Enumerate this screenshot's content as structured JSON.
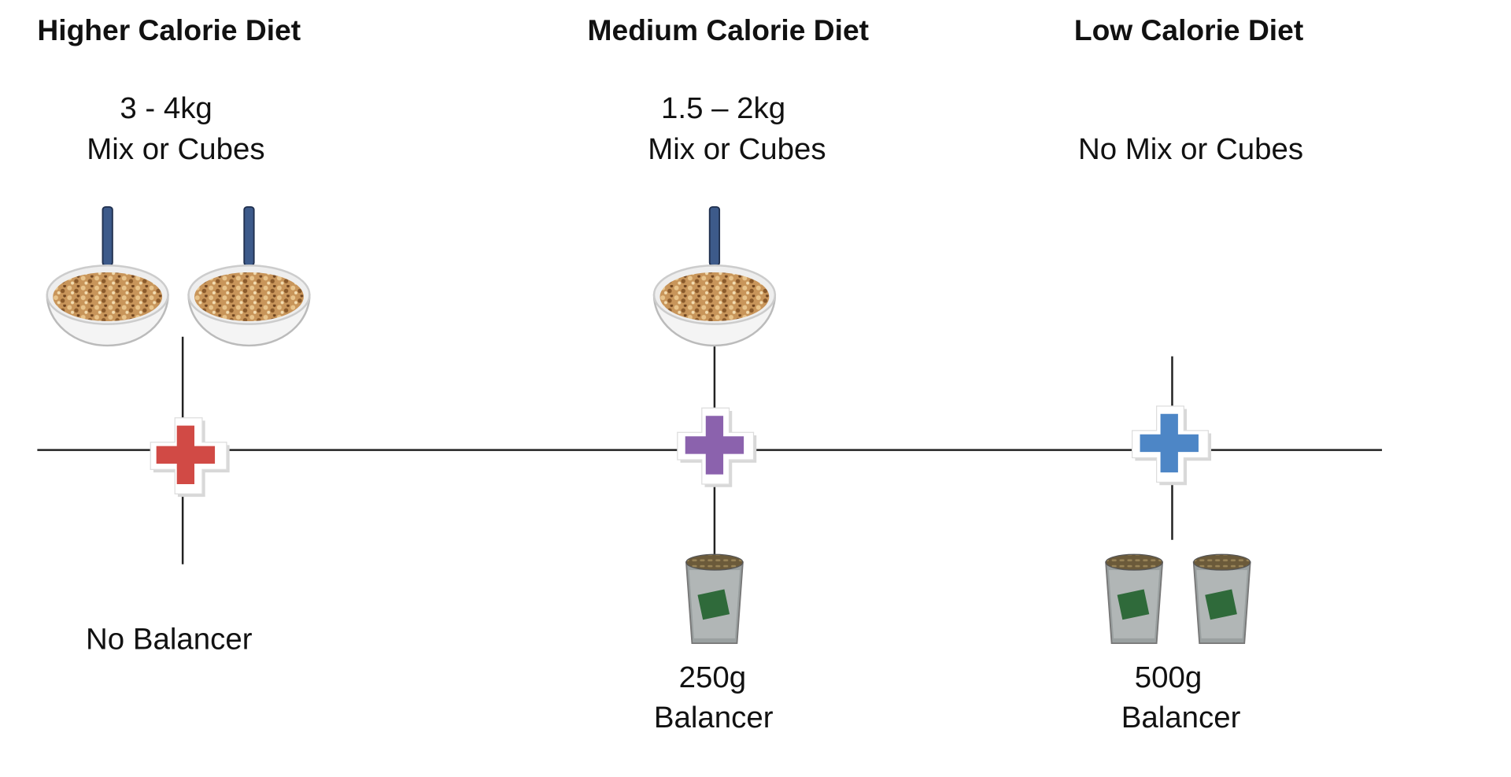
{
  "columns": [
    {
      "title": "Higher Calorie Diet",
      "mix": [
        "3 - 4kg",
        "Mix or Cubes"
      ],
      "balancer": [
        "No Balancer"
      ]
    },
    {
      "title": "Medium Calorie Diet",
      "mix": [
        "1.5 – 2kg",
        "Mix or Cubes"
      ],
      "balancer": [
        "250g",
        "Balancer"
      ]
    },
    {
      "title": "Low Calorie Diet",
      "mix": [
        "No Mix or Cubes"
      ],
      "balancer": [
        "500g",
        "Balancer"
      ]
    }
  ]
}
